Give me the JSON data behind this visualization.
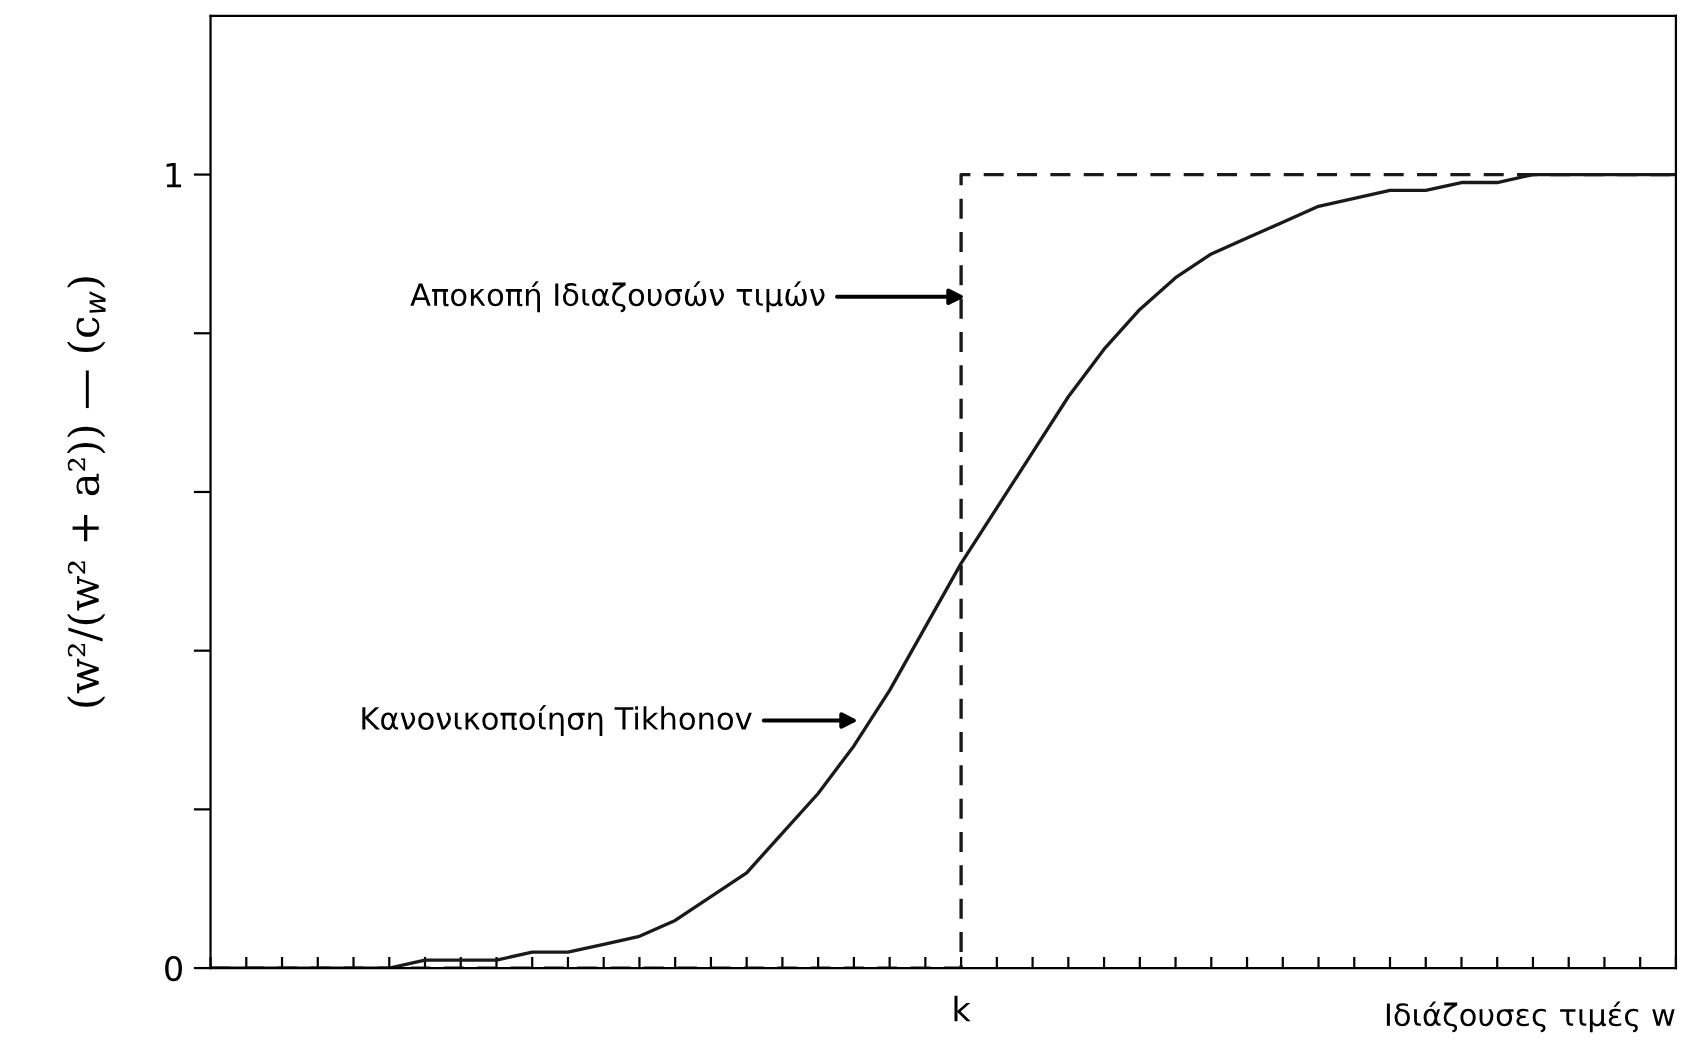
{
  "chart_data": {
    "type": "line",
    "xlabel": "Ιδιάζουσες τιμές w",
    "ylabel": "(w²/(w² + a²)) — (c$_{w}$)",
    "categories": [
      null,
      null,
      null,
      null,
      null,
      null,
      null,
      null,
      null,
      null,
      null,
      null,
      null,
      null,
      null,
      null,
      null,
      null,
      null,
      null,
      null,
      "k",
      null,
      null,
      null,
      null,
      null,
      null,
      null,
      null,
      null,
      null,
      null,
      null,
      null,
      null,
      null,
      null,
      null,
      null,
      null,
      null
    ],
    "series": [
      {
        "color": "#1a1a1a",
        "line_style": "solid",
        "values": [
          0,
          0,
          0,
          0,
          0,
          0,
          0.01,
          0.01,
          0.01,
          0.02,
          0.02,
          0.03,
          0.04,
          0.06,
          0.09,
          0.12,
          0.17,
          0.22,
          0.28,
          0.35,
          0.43,
          0.51,
          0.58,
          0.65,
          0.72,
          0.78,
          0.83,
          0.87,
          0.9,
          0.92,
          0.94,
          0.96,
          0.97,
          0.98,
          0.98,
          0.99,
          0.99,
          1,
          1,
          1,
          1,
          1
        ]
      },
      {
        "type": "step",
        "color": "#1a1a1a",
        "line_style": "dashed",
        "values": [
          0,
          0,
          0,
          0,
          0,
          0,
          0,
          0,
          0,
          0,
          0,
          0,
          0,
          0,
          0,
          0,
          0,
          0,
          0,
          0,
          0,
          1,
          1,
          1,
          1,
          1,
          1,
          1,
          1,
          1,
          1,
          1,
          1,
          1,
          1,
          1,
          1,
          1,
          1,
          1,
          1,
          1
        ]
      }
    ],
    "ylim": [
      0,
      1.2
    ],
    "yticks": [
      0,
      {
        "value": 0.2,
        "label": null
      },
      {
        "value": 0.4,
        "label": null
      },
      {
        "value": 0.6,
        "label": null
      },
      {
        "value": 0.8,
        "label": null
      },
      1
    ],
    "annotations": [
      "Αποκοπή Ιδιαζουσών τιμών",
      "Κανονικοποίηση Tikhonov"
    ],
    "grid": false,
    "legend": false
  }
}
